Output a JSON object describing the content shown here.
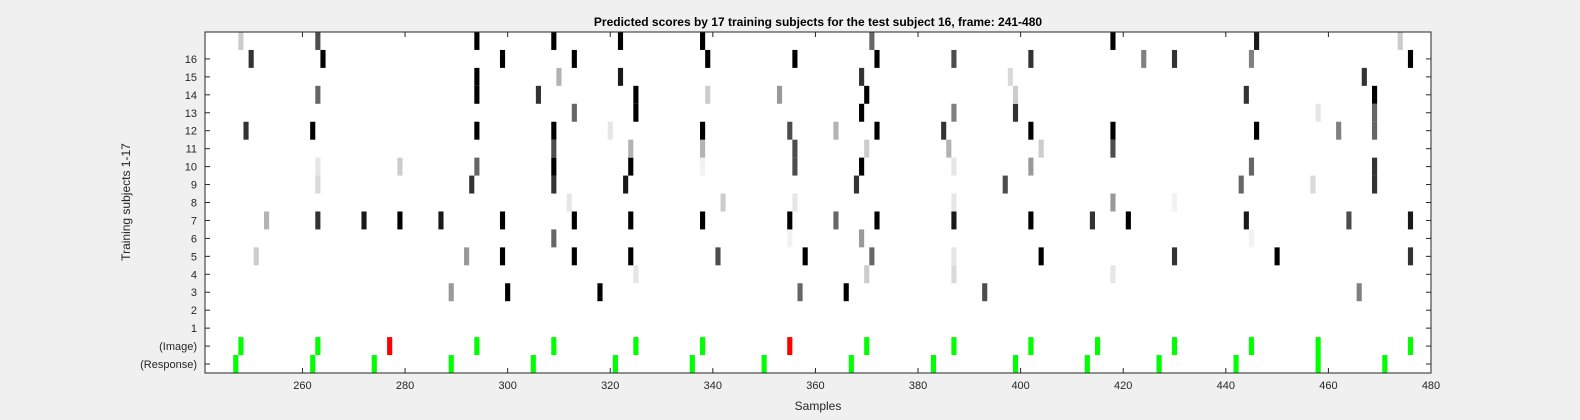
{
  "chart_data": {
    "type": "heatmap",
    "title": "Predicted scores by 17 training subjects for the test subject 16, frame: 241-480",
    "xlabel": "Samples",
    "ylabel": "Training subjects 1-17",
    "xlim": [
      241,
      480
    ],
    "xticks": [
      260,
      280,
      300,
      320,
      340,
      360,
      380,
      400,
      420,
      440,
      460,
      480
    ],
    "rows": [
      "(Response)",
      "(Image)",
      "1",
      "2",
      "3",
      "4",
      "5",
      "6",
      "7",
      "8",
      "9",
      "10",
      "11",
      "12",
      "13",
      "14",
      "15",
      "16",
      "17"
    ],
    "yticklabels": [
      "(Response)",
      "(Image)",
      "1",
      "2",
      "3",
      "4",
      "5",
      "6",
      "7",
      "8",
      "9",
      "10",
      "11",
      "12",
      "13",
      "14",
      "15",
      "16"
    ],
    "colormap": "grayscale: darker = higher predicted score",
    "colors": {
      "correct": "#00ff00",
      "incorrect": "#ff0000",
      "background": "#ffffff",
      "figure": "#f0f0f0"
    },
    "response_marks": [
      {
        "x": 247,
        "status": "correct"
      },
      {
        "x": 262,
        "status": "correct"
      },
      {
        "x": 274,
        "status": "correct"
      },
      {
        "x": 289,
        "status": "correct"
      },
      {
        "x": 305,
        "status": "correct"
      },
      {
        "x": 321,
        "status": "correct"
      },
      {
        "x": 336,
        "status": "correct"
      },
      {
        "x": 350,
        "status": "correct"
      },
      {
        "x": 367,
        "status": "correct"
      },
      {
        "x": 383,
        "status": "correct"
      },
      {
        "x": 399,
        "status": "correct"
      },
      {
        "x": 413,
        "status": "correct"
      },
      {
        "x": 427,
        "status": "correct"
      },
      {
        "x": 442,
        "status": "correct"
      },
      {
        "x": 458,
        "status": "correct"
      },
      {
        "x": 471,
        "status": "correct"
      }
    ],
    "image_marks": [
      {
        "x": 248,
        "status": "correct"
      },
      {
        "x": 263,
        "status": "correct"
      },
      {
        "x": 277,
        "status": "incorrect"
      },
      {
        "x": 294,
        "status": "correct"
      },
      {
        "x": 309,
        "status": "correct"
      },
      {
        "x": 325,
        "status": "correct"
      },
      {
        "x": 338,
        "status": "correct"
      },
      {
        "x": 355,
        "status": "incorrect"
      },
      {
        "x": 370,
        "status": "correct"
      },
      {
        "x": 387,
        "status": "correct"
      },
      {
        "x": 402,
        "status": "correct"
      },
      {
        "x": 415,
        "status": "correct"
      },
      {
        "x": 430,
        "status": "correct"
      },
      {
        "x": 445,
        "status": "correct"
      },
      {
        "x": 458,
        "status": "correct"
      },
      {
        "x": 476,
        "status": "correct"
      }
    ],
    "scores": [
      {
        "row": "3",
        "cells": [
          [
            289,
            0.4
          ],
          [
            300,
            1.0
          ],
          [
            318,
            1.0
          ],
          [
            357,
            0.6
          ],
          [
            366,
            1.0
          ],
          [
            393,
            0.7
          ],
          [
            466,
            0.5
          ]
        ]
      },
      {
        "row": "4",
        "cells": [
          [
            325,
            0.1
          ],
          [
            370,
            0.2
          ],
          [
            387,
            0.15
          ],
          [
            418,
            0.1
          ]
        ]
      },
      {
        "row": "5",
        "cells": [
          [
            251,
            0.2
          ],
          [
            292,
            0.4
          ],
          [
            299,
            1.0
          ],
          [
            313,
            1.0
          ],
          [
            324,
            1.0
          ],
          [
            341,
            0.7
          ],
          [
            358,
            1.0
          ],
          [
            371,
            0.6
          ],
          [
            387,
            0.1
          ],
          [
            404,
            1.0
          ],
          [
            430,
            0.8
          ],
          [
            450,
            1.0
          ],
          [
            476,
            0.8
          ]
        ]
      },
      {
        "row": "6",
        "cells": [
          [
            309,
            0.6
          ],
          [
            355,
            0.05
          ],
          [
            369,
            0.4
          ],
          [
            445,
            0.05
          ]
        ]
      },
      {
        "row": "7",
        "cells": [
          [
            253,
            0.3
          ],
          [
            263,
            0.8
          ],
          [
            272,
            0.9
          ],
          [
            279,
            1.0
          ],
          [
            287,
            0.9
          ],
          [
            299,
            1.0
          ],
          [
            313,
            1.0
          ],
          [
            324,
            1.0
          ],
          [
            338,
            1.0
          ],
          [
            355,
            1.0
          ],
          [
            364,
            0.6
          ],
          [
            372,
            1.0
          ],
          [
            387,
            0.9
          ],
          [
            402,
            1.0
          ],
          [
            414,
            0.8
          ],
          [
            421,
            1.0
          ],
          [
            444,
            0.9
          ],
          [
            464,
            0.7
          ],
          [
            476,
            0.9
          ]
        ]
      },
      {
        "row": "8",
        "cells": [
          [
            312,
            0.1
          ],
          [
            342,
            0.2
          ],
          [
            356,
            0.1
          ],
          [
            387,
            0.1
          ],
          [
            418,
            0.4
          ],
          [
            430,
            0.05
          ]
        ]
      },
      {
        "row": "9",
        "cells": [
          [
            263,
            0.15
          ],
          [
            293,
            0.8
          ],
          [
            309,
            0.8
          ],
          [
            323,
            0.9
          ],
          [
            368,
            0.8
          ],
          [
            397,
            0.7
          ],
          [
            443,
            0.6
          ],
          [
            457,
            0.15
          ],
          [
            469,
            0.8
          ]
        ]
      },
      {
        "row": "10",
        "cells": [
          [
            263,
            0.1
          ],
          [
            279,
            0.2
          ],
          [
            294,
            0.6
          ],
          [
            309,
            1.0
          ],
          [
            324,
            1.0
          ],
          [
            338,
            0.05
          ],
          [
            356,
            0.7
          ],
          [
            369,
            1.0
          ],
          [
            387,
            0.1
          ],
          [
            402,
            0.4
          ],
          [
            445,
            0.6
          ],
          [
            469,
            0.8
          ]
        ]
      },
      {
        "row": "11",
        "cells": [
          [
            309,
            0.7
          ],
          [
            324,
            0.3
          ],
          [
            338,
            0.3
          ],
          [
            356,
            0.7
          ],
          [
            370,
            0.2
          ],
          [
            386,
            0.3
          ],
          [
            404,
            0.2
          ],
          [
            418,
            0.7
          ]
        ]
      },
      {
        "row": "12",
        "cells": [
          [
            249,
            0.8
          ],
          [
            262,
            1.0
          ],
          [
            294,
            1.0
          ],
          [
            309,
            1.0
          ],
          [
            320,
            0.1
          ],
          [
            338,
            1.0
          ],
          [
            355,
            0.7
          ],
          [
            364,
            0.3
          ],
          [
            372,
            1.0
          ],
          [
            385,
            0.8
          ],
          [
            402,
            1.0
          ],
          [
            418,
            1.0
          ],
          [
            446,
            1.0
          ],
          [
            462,
            0.5
          ],
          [
            469,
            0.6
          ]
        ]
      },
      {
        "row": "13",
        "cells": [
          [
            313,
            0.6
          ],
          [
            325,
            1.0
          ],
          [
            369,
            1.0
          ],
          [
            387,
            0.5
          ],
          [
            399,
            0.8
          ],
          [
            458,
            0.1
          ],
          [
            469,
            0.6
          ]
        ]
      },
      {
        "row": "14",
        "cells": [
          [
            263,
            0.6
          ],
          [
            294,
            1.0
          ],
          [
            306,
            0.8
          ],
          [
            325,
            1.0
          ],
          [
            339,
            0.2
          ],
          [
            353,
            0.4
          ],
          [
            370,
            1.0
          ],
          [
            399,
            0.2
          ],
          [
            444,
            0.8
          ],
          [
            469,
            1.0
          ]
        ]
      },
      {
        "row": "15",
        "cells": [
          [
            294,
            1.0
          ],
          [
            310,
            0.3
          ],
          [
            322,
            0.9
          ],
          [
            369,
            0.8
          ],
          [
            398,
            0.15
          ],
          [
            467,
            0.8
          ]
        ]
      },
      {
        "row": "16",
        "cells": [
          [
            250,
            0.8
          ],
          [
            264,
            1.0
          ],
          [
            299,
            1.0
          ],
          [
            313,
            1.0
          ],
          [
            339,
            1.0
          ],
          [
            356,
            1.0
          ],
          [
            372,
            1.0
          ],
          [
            387,
            0.7
          ],
          [
            402,
            0.8
          ],
          [
            424,
            0.5
          ],
          [
            430,
            0.8
          ],
          [
            445,
            0.5
          ],
          [
            476,
            1.0
          ]
        ]
      },
      {
        "row": "17",
        "cells": [
          [
            248,
            0.2
          ],
          [
            263,
            0.7
          ],
          [
            294,
            1.0
          ],
          [
            309,
            1.0
          ],
          [
            322,
            1.0
          ],
          [
            338,
            1.0
          ],
          [
            371,
            0.6
          ],
          [
            418,
            1.0
          ],
          [
            446,
            0.9
          ],
          [
            474,
            0.2
          ]
        ]
      }
    ]
  }
}
